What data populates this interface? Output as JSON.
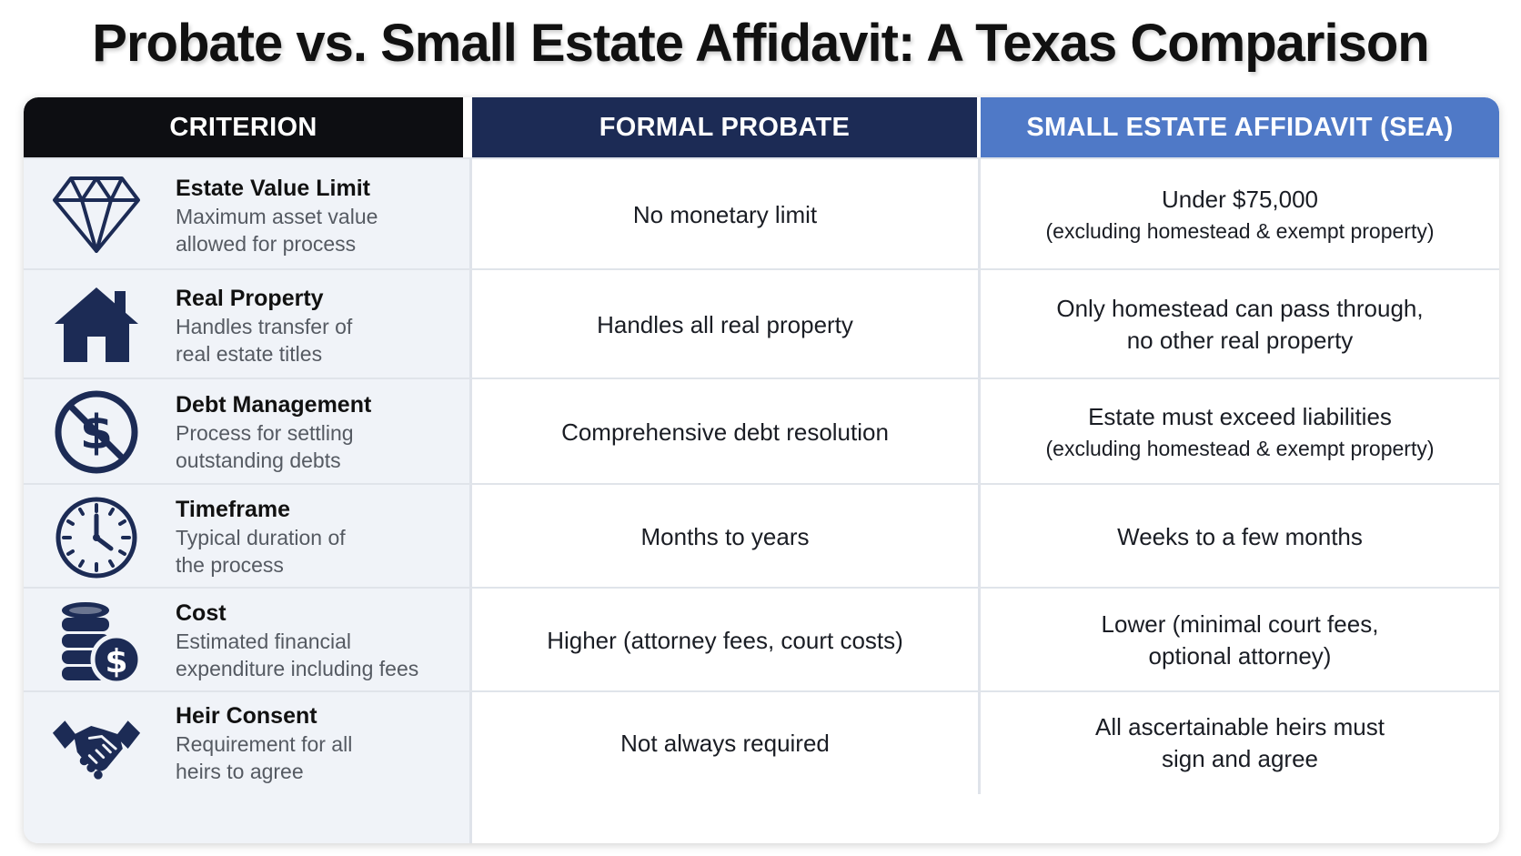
{
  "title": "Probate vs. Small Estate Affidavit: A Texas Comparison",
  "headers": {
    "criterion": "CRITERION",
    "probate": "FORMAL PROBATE",
    "sea": "SMALL ESTATE AFFIDAVIT (SEA)"
  },
  "colors": {
    "criterion_header": "#0d0e12",
    "probate_header": "#1c2b55",
    "sea_header": "#4f79c7",
    "icon": "#1c2b55"
  },
  "rows": [
    {
      "icon": "diamond-icon",
      "title": "Estate Value Limit",
      "desc1": "Maximum asset value",
      "desc2": "allowed for process",
      "probate": "No monetary limit",
      "sea1": "Under $75,000",
      "sea2": "(excluding homestead & exempt property)"
    },
    {
      "icon": "house-icon",
      "title": "Real Property",
      "desc1": "Handles transfer of",
      "desc2": "real estate titles",
      "probate": "Handles all real property",
      "sea1": "Only homestead can pass through,",
      "sea2": "no other real property"
    },
    {
      "icon": "no-dollar-icon",
      "title": "Debt Management",
      "desc1": "Process for settling",
      "desc2": "outstanding debts",
      "probate": "Comprehensive debt resolution",
      "sea1": "Estate must exceed liabilities",
      "sea2": "(excluding homestead & exempt property)"
    },
    {
      "icon": "clock-icon",
      "title": "Timeframe",
      "desc1": "Typical duration of",
      "desc2": "the process",
      "probate": "Months to years",
      "sea1": "Weeks to a few months",
      "sea2": ""
    },
    {
      "icon": "coins-dollar-icon",
      "title": "Cost",
      "desc1": "Estimated financial",
      "desc2": "expenditure including fees",
      "probate": "Higher (attorney fees, court costs)",
      "sea1": "Lower (minimal court fees,",
      "sea2": "optional attorney)"
    },
    {
      "icon": "handshake-icon",
      "title": "Heir Consent",
      "desc1": "Requirement for all",
      "desc2": "heirs to agree",
      "probate": "Not always required",
      "sea1": "All ascertainable heirs must",
      "sea2": "sign and agree"
    }
  ]
}
